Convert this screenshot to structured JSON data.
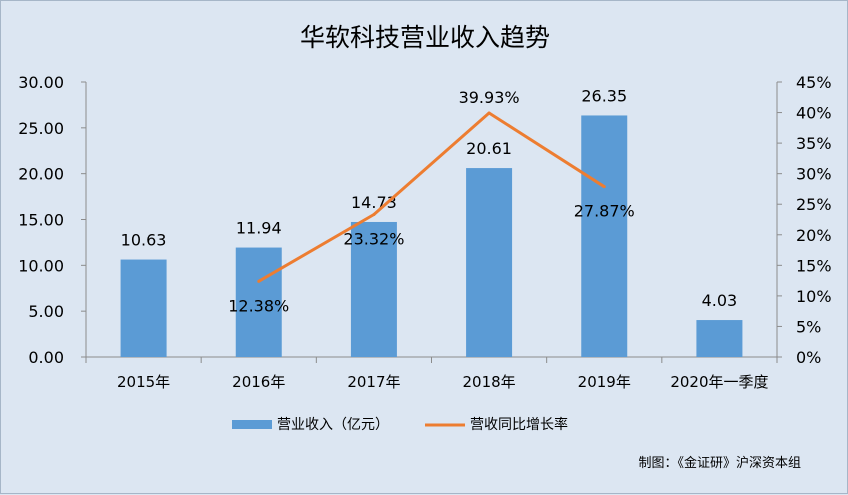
{
  "chart_data": {
    "type": "bar+line",
    "title": "华软科技营业收入趋势",
    "categories": [
      "2015年",
      "2016年",
      "2017年",
      "2018年",
      "2019年",
      "2020年一季度"
    ],
    "series": [
      {
        "name": "营业收入（亿元）",
        "type": "bar",
        "axis": "left",
        "color": "#5b9bd5",
        "values": [
          10.63,
          11.94,
          14.73,
          20.61,
          26.35,
          4.03
        ],
        "labels": [
          "10.63",
          "11.94",
          "14.73",
          "20.61",
          "26.35",
          "4.03"
        ]
      },
      {
        "name": "营收同比增长率",
        "type": "line",
        "axis": "right",
        "color": "#ed7d31",
        "values": [
          null,
          12.38,
          23.32,
          39.93,
          27.87,
          null
        ],
        "labels": [
          "",
          "12.38%",
          "23.32%",
          "39.93%",
          "27.87%",
          ""
        ]
      }
    ],
    "y_left": {
      "min": 0,
      "max": 30,
      "step": 5,
      "tick_labels": [
        "0.00",
        "5.00",
        "10.00",
        "15.00",
        "20.00",
        "25.00",
        "30.00"
      ]
    },
    "y_right": {
      "min": 0,
      "max": 45,
      "step": 5,
      "tick_labels": [
        "0%",
        "5%",
        "10%",
        "15%",
        "20%",
        "25%",
        "30%",
        "35%",
        "40%",
        "45%"
      ]
    },
    "grid": false,
    "legend": "bottom",
    "source_note": "制图：《金证研》沪深资本组"
  }
}
